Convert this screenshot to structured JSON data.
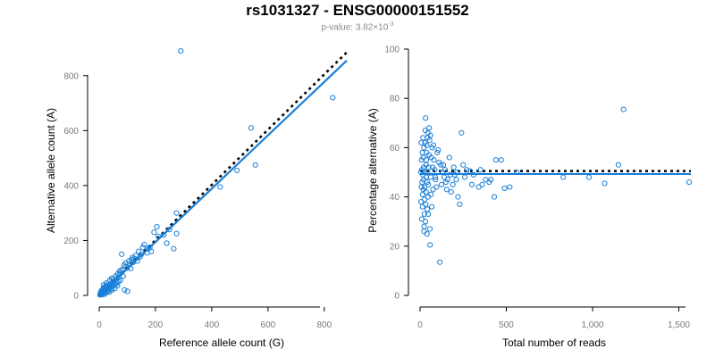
{
  "header": {
    "title": "rs1031327 - ENSG00000151552",
    "pvalue_prefix": "p-value: 3.82×10",
    "pvalue_exp": "-3"
  },
  "colors": {
    "points": "#1a7fd6",
    "fit_line": "#1a7fd6",
    "reference_line": "#000000",
    "tick_labels": "#7a7a7a"
  },
  "chart_data": [
    {
      "type": "scatter",
      "xlabel": "Reference allele count (G)",
      "ylabel": "Alternative allele count (A)",
      "xlim": [
        0,
        880
      ],
      "ylim": [
        0,
        900
      ],
      "xticks": [
        0,
        200,
        400,
        600,
        800
      ],
      "yticks": [
        0,
        200,
        400,
        600,
        800
      ],
      "grid": false,
      "reference_line": {
        "style": "dotted",
        "x": [
          0,
          880
        ],
        "y": [
          0,
          885
        ]
      },
      "fit_line": {
        "style": "solid",
        "x": [
          0,
          880
        ],
        "y": [
          0,
          855
        ]
      },
      "points": [
        [
          290,
          890
        ],
        [
          830,
          720
        ],
        [
          540,
          610
        ],
        [
          555,
          475
        ],
        [
          490,
          455
        ],
        [
          430,
          395
        ],
        [
          275,
          225
        ],
        [
          240,
          190
        ],
        [
          265,
          170
        ],
        [
          185,
          160
        ],
        [
          170,
          155
        ],
        [
          205,
          250
        ],
        [
          195,
          230
        ],
        [
          160,
          185
        ],
        [
          130,
          145
        ],
        [
          115,
          130
        ],
        [
          145,
          140
        ],
        [
          95,
          105
        ],
        [
          80,
          150
        ],
        [
          75,
          80
        ],
        [
          70,
          65
        ],
        [
          60,
          60
        ],
        [
          52,
          52
        ],
        [
          45,
          45
        ],
        [
          40,
          40
        ],
        [
          38,
          55
        ],
        [
          35,
          32
        ],
        [
          30,
          30
        ],
        [
          28,
          25
        ],
        [
          25,
          28
        ],
        [
          22,
          20
        ],
        [
          20,
          18
        ],
        [
          18,
          22
        ],
        [
          15,
          15
        ],
        [
          12,
          12
        ],
        [
          10,
          10
        ],
        [
          8,
          9
        ],
        [
          6,
          6
        ],
        [
          5,
          4
        ],
        [
          4,
          7
        ],
        [
          14,
          25
        ],
        [
          24,
          35
        ],
        [
          32,
          42
        ],
        [
          42,
          30
        ],
        [
          48,
          38
        ],
        [
          55,
          42
        ],
        [
          62,
          48
        ],
        [
          68,
          50
        ],
        [
          85,
          95
        ],
        [
          100,
          100
        ],
        [
          110,
          115
        ],
        [
          120,
          120
        ],
        [
          135,
          125
        ],
        [
          150,
          150
        ],
        [
          175,
          170
        ],
        [
          180,
          175
        ],
        [
          210,
          215
        ],
        [
          230,
          220
        ],
        [
          250,
          240
        ],
        [
          275,
          300
        ],
        [
          90,
          20
        ],
        [
          100,
          15
        ],
        [
          55,
          25
        ],
        [
          65,
          35
        ],
        [
          30,
          15
        ],
        [
          20,
          5
        ],
        [
          18,
          30
        ],
        [
          12,
          20
        ],
        [
          26,
          18
        ],
        [
          44,
          62
        ],
        [
          58,
          70
        ],
        [
          72,
          88
        ],
        [
          88,
          110
        ],
        [
          105,
          125
        ],
        [
          125,
          135
        ],
        [
          140,
          160
        ],
        [
          155,
          175
        ],
        [
          3,
          2
        ],
        [
          9,
          14
        ],
        [
          16,
          10
        ],
        [
          36,
          28
        ],
        [
          50,
          60
        ],
        [
          66,
          78
        ],
        [
          78,
          92
        ],
        [
          94,
          118
        ],
        [
          112,
          98
        ],
        [
          118,
          138
        ],
        [
          36,
          12
        ],
        [
          46,
          20
        ],
        [
          15,
          38
        ],
        [
          25,
          45
        ],
        [
          33,
          18
        ],
        [
          40,
          22
        ],
        [
          50,
          35
        ],
        [
          60,
          40
        ],
        [
          75,
          55
        ],
        [
          85,
          70
        ],
        [
          11,
          3
        ],
        [
          7,
          16
        ],
        [
          21,
          10
        ],
        [
          27,
          36
        ]
      ]
    },
    {
      "type": "scatter",
      "xlabel": "Total number of reads",
      "ylabel": "Percentage alternative (A)",
      "xlim": [
        0,
        1570
      ],
      "ylim": [
        0,
        100
      ],
      "xticks": [
        0,
        500,
        1000,
        1500
      ],
      "xtick_labels": [
        "0",
        "500",
        "1,000",
        "1,500"
      ],
      "yticks": [
        0,
        20,
        40,
        60,
        80,
        100
      ],
      "grid": false,
      "reference_line": {
        "style": "dotted",
        "x": [
          0,
          1570
        ],
        "y": [
          50.5,
          50.5
        ]
      },
      "fit_line": {
        "style": "solid",
        "x": [
          0,
          1570
        ],
        "y": [
          49.3,
          49.3
        ]
      },
      "points": [
        [
          1180,
          75.5
        ],
        [
          1560,
          46
        ],
        [
          1150,
          53
        ],
        [
          1070,
          45.5
        ],
        [
          980,
          48
        ],
        [
          830,
          48
        ],
        [
          560,
          50
        ],
        [
          520,
          44
        ],
        [
          490,
          43.5
        ],
        [
          470,
          55
        ],
        [
          440,
          55
        ],
        [
          430,
          40
        ],
        [
          400,
          46
        ],
        [
          380,
          47
        ],
        [
          360,
          45
        ],
        [
          340,
          44
        ],
        [
          310,
          49
        ],
        [
          290,
          50.5
        ],
        [
          270,
          51
        ],
        [
          250,
          53
        ],
        [
          240,
          66
        ],
        [
          230,
          37
        ],
        [
          220,
          40
        ],
        [
          210,
          47
        ],
        [
          200,
          49
        ],
        [
          190,
          45
        ],
        [
          180,
          42
        ],
        [
          170,
          56
        ],
        [
          160,
          47
        ],
        [
          150,
          46
        ],
        [
          140,
          48
        ],
        [
          130,
          50
        ],
        [
          120,
          53
        ],
        [
          115,
          13.5
        ],
        [
          110,
          54
        ],
        [
          100,
          58
        ],
        [
          95,
          44
        ],
        [
          90,
          47
        ],
        [
          85,
          51
        ],
        [
          80,
          55
        ],
        [
          75,
          43
        ],
        [
          70,
          60
        ],
        [
          65,
          56
        ],
        [
          62,
          48
        ],
        [
          58,
          20.5
        ],
        [
          55,
          63
        ],
        [
          52,
          57
        ],
        [
          50,
          52
        ],
        [
          48,
          45
        ],
        [
          46,
          40
        ],
        [
          45,
          66
        ],
        [
          44,
          64
        ],
        [
          43,
          50
        ],
        [
          42,
          35
        ],
        [
          41,
          46
        ],
        [
          40,
          25
        ],
        [
          39,
          61
        ],
        [
          38,
          58
        ],
        [
          37,
          55
        ],
        [
          36,
          48
        ],
        [
          35,
          53
        ],
        [
          34,
          42
        ],
        [
          33,
          37
        ],
        [
          32,
          72
        ],
        [
          31,
          30
        ],
        [
          30,
          67
        ],
        [
          29,
          62
        ],
        [
          28,
          50
        ],
        [
          27,
          44
        ],
        [
          26,
          39
        ],
        [
          25,
          33
        ],
        [
          24,
          28
        ],
        [
          23,
          26
        ],
        [
          22,
          60
        ],
        [
          21,
          52
        ],
        [
          20,
          47
        ],
        [
          19,
          43
        ],
        [
          18,
          56
        ],
        [
          17,
          64
        ],
        [
          16,
          49
        ],
        [
          15,
          41
        ],
        [
          14,
          36
        ],
        [
          13,
          58
        ],
        [
          12,
          46
        ],
        [
          11,
          51
        ],
        [
          10,
          31
        ],
        [
          9,
          55
        ],
        [
          8,
          44
        ],
        [
          7,
          62
        ],
        [
          6,
          38
        ],
        [
          5,
          50
        ],
        [
          60,
          65
        ],
        [
          68,
          36
        ],
        [
          72,
          52
        ],
        [
          78,
          61
        ],
        [
          88,
          48
        ],
        [
          105,
          59
        ],
        [
          125,
          45
        ],
        [
          135,
          53
        ],
        [
          145,
          51
        ],
        [
          155,
          43
        ],
        [
          175,
          49
        ],
        [
          195,
          52
        ],
        [
          215,
          50
        ],
        [
          260,
          48
        ],
        [
          300,
          45
        ],
        [
          350,
          51
        ],
        [
          410,
          47
        ],
        [
          57,
          27
        ],
        [
          47,
          33
        ],
        [
          53,
          68
        ],
        [
          63,
          41
        ]
      ]
    }
  ]
}
